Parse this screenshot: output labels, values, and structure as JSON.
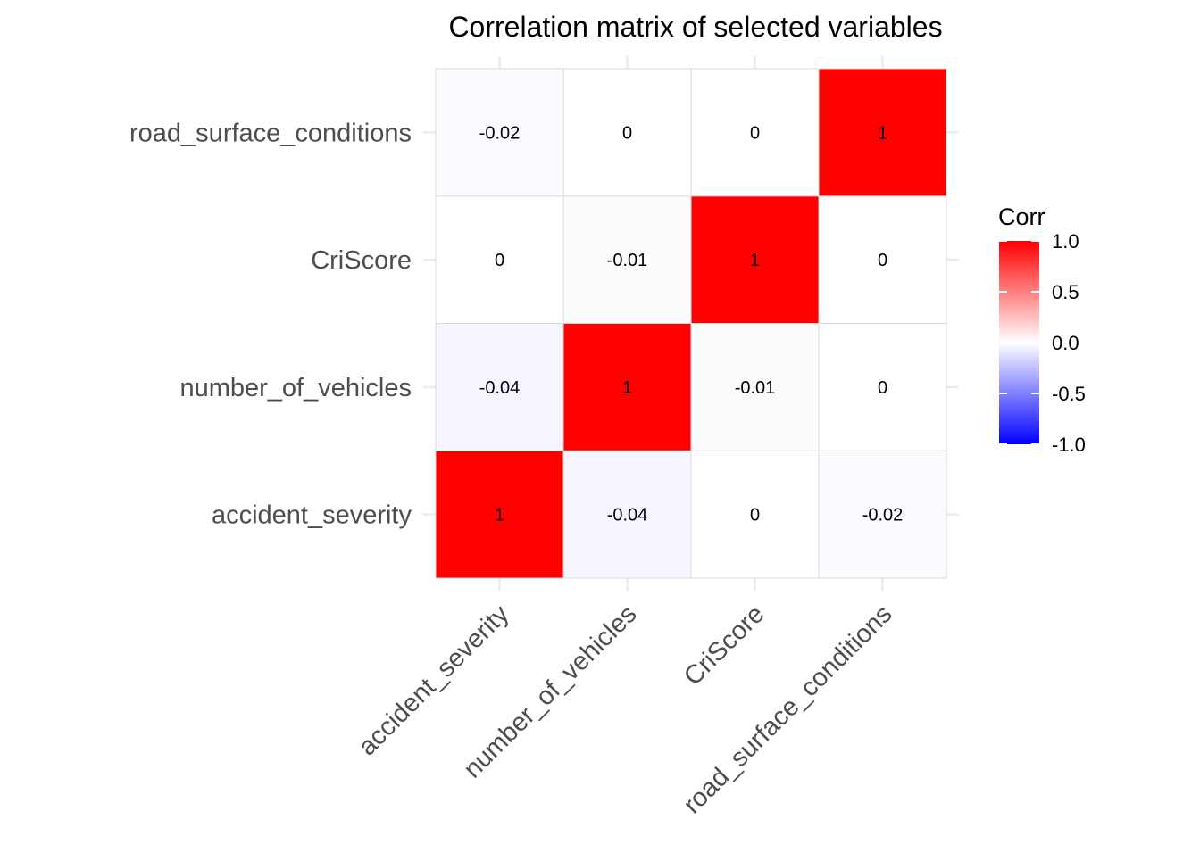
{
  "chart_data": {
    "type": "heatmap",
    "title": "Correlation matrix of selected variables",
    "x_categories": [
      "accident_severity",
      "number_of_vehicles",
      "CriScore",
      "road_surface_conditions"
    ],
    "y_categories": [
      "accident_severity",
      "number_of_vehicles",
      "CriScore",
      "road_surface_conditions"
    ],
    "matrix": [
      [
        1,
        -0.04,
        0,
        -0.02
      ],
      [
        -0.04,
        1,
        -0.01,
        0
      ],
      [
        0,
        -0.01,
        1,
        0
      ],
      [
        -0.02,
        0,
        0,
        1
      ]
    ],
    "labels": [
      [
        "1",
        "-0.04",
        "0",
        "-0.02"
      ],
      [
        "-0.04",
        "1",
        "-0.01",
        "0"
      ],
      [
        "0",
        "-0.01",
        "1",
        "0"
      ],
      [
        "-0.02",
        "0",
        "0",
        "1"
      ]
    ],
    "legend": {
      "title": "Corr",
      "ticks": [
        "1.0",
        "0.5",
        "0.0",
        "-0.5",
        "-1.0"
      ],
      "tick_values": [
        1.0,
        0.5,
        0.0,
        -0.5,
        -1.0
      ],
      "range": [
        -1,
        1
      ],
      "placement": "right"
    },
    "colors": {
      "low": "#0000ff",
      "mid": "#ffffff",
      "high": "#ff0000"
    },
    "grid": true
  }
}
